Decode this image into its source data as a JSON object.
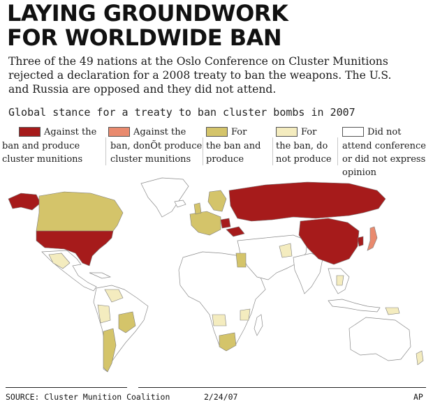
{
  "headline": {
    "line1": "LAYING GROUNDWORK",
    "line2": "FOR WORLDWIDE BAN"
  },
  "intro": {
    "line1": "Three of the 49 nations at the Oslo Conference on Cluster Munitions",
    "line2": "rejected a declaration for a 2008 treaty to ban the weapons. The U.S.",
    "line3": "and Russia are opposed and they did not attend."
  },
  "legend": {
    "title": "Global stance for a treaty to ban cluster bombs in 2007",
    "items": [
      {
        "lines": [
          "Against the",
          "ban and produce",
          "cluster munitions"
        ],
        "color": "#a61b1b"
      },
      {
        "lines": [
          "Against the",
          "ban, donÕt produce",
          "cluster munitions"
        ],
        "color": "#e98a6e"
      },
      {
        "lines": [
          "For",
          "the ban and",
          "produce"
        ],
        "color": "#d4c46a"
      },
      {
        "lines": [
          "For",
          "the ban, do",
          "not produce"
        ],
        "color": "#f4ecbf"
      },
      {
        "lines": [
          "Did not",
          "attend conference",
          "or did not express",
          "opinion"
        ],
        "color": "#ffffff"
      }
    ]
  },
  "map_colors": {
    "ocean": "#ffffff",
    "land_default": "#ffffff",
    "country_border": "#7a7a7a",
    "coast": "#8a8a8a"
  },
  "footer": {
    "source": "SOURCE: Cluster Munition Coalition",
    "date": "2/24/07",
    "credit": "AP"
  }
}
